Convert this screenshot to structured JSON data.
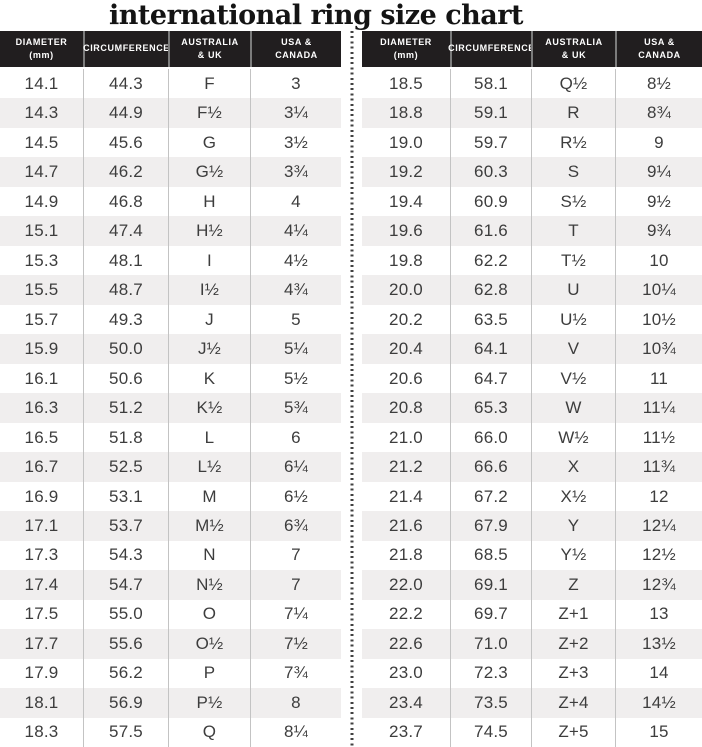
{
  "title": "international ring size chart",
  "header": {
    "columns": [
      {
        "line1": "DIAMETER",
        "line2": "(mm)"
      },
      {
        "line1": "CIRCUMFERENCE",
        "line2": ""
      },
      {
        "line1": "AUSTRALIA",
        "line2": "& UK"
      },
      {
        "line1": "USA &",
        "line2": "CANADA"
      }
    ]
  },
  "colors": {
    "header_bg": "#211e1f",
    "header_text": "#ffffff",
    "row_alt": "#f0eeee",
    "body_text": "#3d3d3d",
    "column_line": "#c3c3c3",
    "header_gap": "#7c7c7c",
    "divider_dot": "#414141",
    "title_text": "#141414"
  },
  "chart_data": {
    "type": "table",
    "title": "international ring size chart",
    "columns": [
      "Diameter (mm)",
      "Circumference",
      "Australia & UK",
      "USA & Canada"
    ],
    "tables": [
      {
        "name": "left",
        "rows": [
          [
            "14.1",
            "44.3",
            "F",
            "3"
          ],
          [
            "14.3",
            "44.9",
            "F½",
            "3¼"
          ],
          [
            "14.5",
            "45.6",
            "G",
            "3½"
          ],
          [
            "14.7",
            "46.2",
            "G½",
            "3¾"
          ],
          [
            "14.9",
            "46.8",
            "H",
            "4"
          ],
          [
            "15.1",
            "47.4",
            "H½",
            "4¼"
          ],
          [
            "15.3",
            "48.1",
            "I",
            "4½"
          ],
          [
            "15.5",
            "48.7",
            "I½",
            "4¾"
          ],
          [
            "15.7",
            "49.3",
            "J",
            "5"
          ],
          [
            "15.9",
            "50.0",
            "J½",
            "5¼"
          ],
          [
            "16.1",
            "50.6",
            "K",
            "5½"
          ],
          [
            "16.3",
            "51.2",
            "K½",
            "5¾"
          ],
          [
            "16.5",
            "51.8",
            "L",
            "6"
          ],
          [
            "16.7",
            "52.5",
            "L½",
            "6¼"
          ],
          [
            "16.9",
            "53.1",
            "M",
            "6½"
          ],
          [
            "17.1",
            "53.7",
            "M½",
            "6¾"
          ],
          [
            "17.3",
            "54.3",
            "N",
            "7"
          ],
          [
            "17.4",
            "54.7",
            "N½",
            "7"
          ],
          [
            "17.5",
            "55.0",
            "O",
            "7¼"
          ],
          [
            "17.7",
            "55.6",
            "O½",
            "7½"
          ],
          [
            "17.9",
            "56.2",
            "P",
            "7¾"
          ],
          [
            "18.1",
            "56.9",
            "P½",
            "8"
          ],
          [
            "18.3",
            "57.5",
            "Q",
            "8¼"
          ]
        ]
      },
      {
        "name": "right",
        "rows": [
          [
            "18.5",
            "58.1",
            "Q½",
            "8½"
          ],
          [
            "18.8",
            "59.1",
            "R",
            "8¾"
          ],
          [
            "19.0",
            "59.7",
            "R½",
            "9"
          ],
          [
            "19.2",
            "60.3",
            "S",
            "9¼"
          ],
          [
            "19.4",
            "60.9",
            "S½",
            "9½"
          ],
          [
            "19.6",
            "61.6",
            "T",
            "9¾"
          ],
          [
            "19.8",
            "62.2",
            "T½",
            "10"
          ],
          [
            "20.0",
            "62.8",
            "U",
            "10¼"
          ],
          [
            "20.2",
            "63.5",
            "U½",
            "10½"
          ],
          [
            "20.4",
            "64.1",
            "V",
            "10¾"
          ],
          [
            "20.6",
            "64.7",
            "V½",
            "11"
          ],
          [
            "20.8",
            "65.3",
            "W",
            "11¼"
          ],
          [
            "21.0",
            "66.0",
            "W½",
            "11½"
          ],
          [
            "21.2",
            "66.6",
            "X",
            "11¾"
          ],
          [
            "21.4",
            "67.2",
            "X½",
            "12"
          ],
          [
            "21.6",
            "67.9",
            "Y",
            "12¼"
          ],
          [
            "21.8",
            "68.5",
            "Y½",
            "12½"
          ],
          [
            "22.0",
            "69.1",
            "Z",
            "12¾"
          ],
          [
            "22.2",
            "69.7",
            "Z+1",
            "13"
          ],
          [
            "22.6",
            "71.0",
            "Z+2",
            "13½"
          ],
          [
            "23.0",
            "72.3",
            "Z+3",
            "14"
          ],
          [
            "23.4",
            "73.5",
            "Z+4",
            "14½"
          ],
          [
            "23.7",
            "74.5",
            "Z+5",
            "15"
          ]
        ]
      }
    ]
  }
}
